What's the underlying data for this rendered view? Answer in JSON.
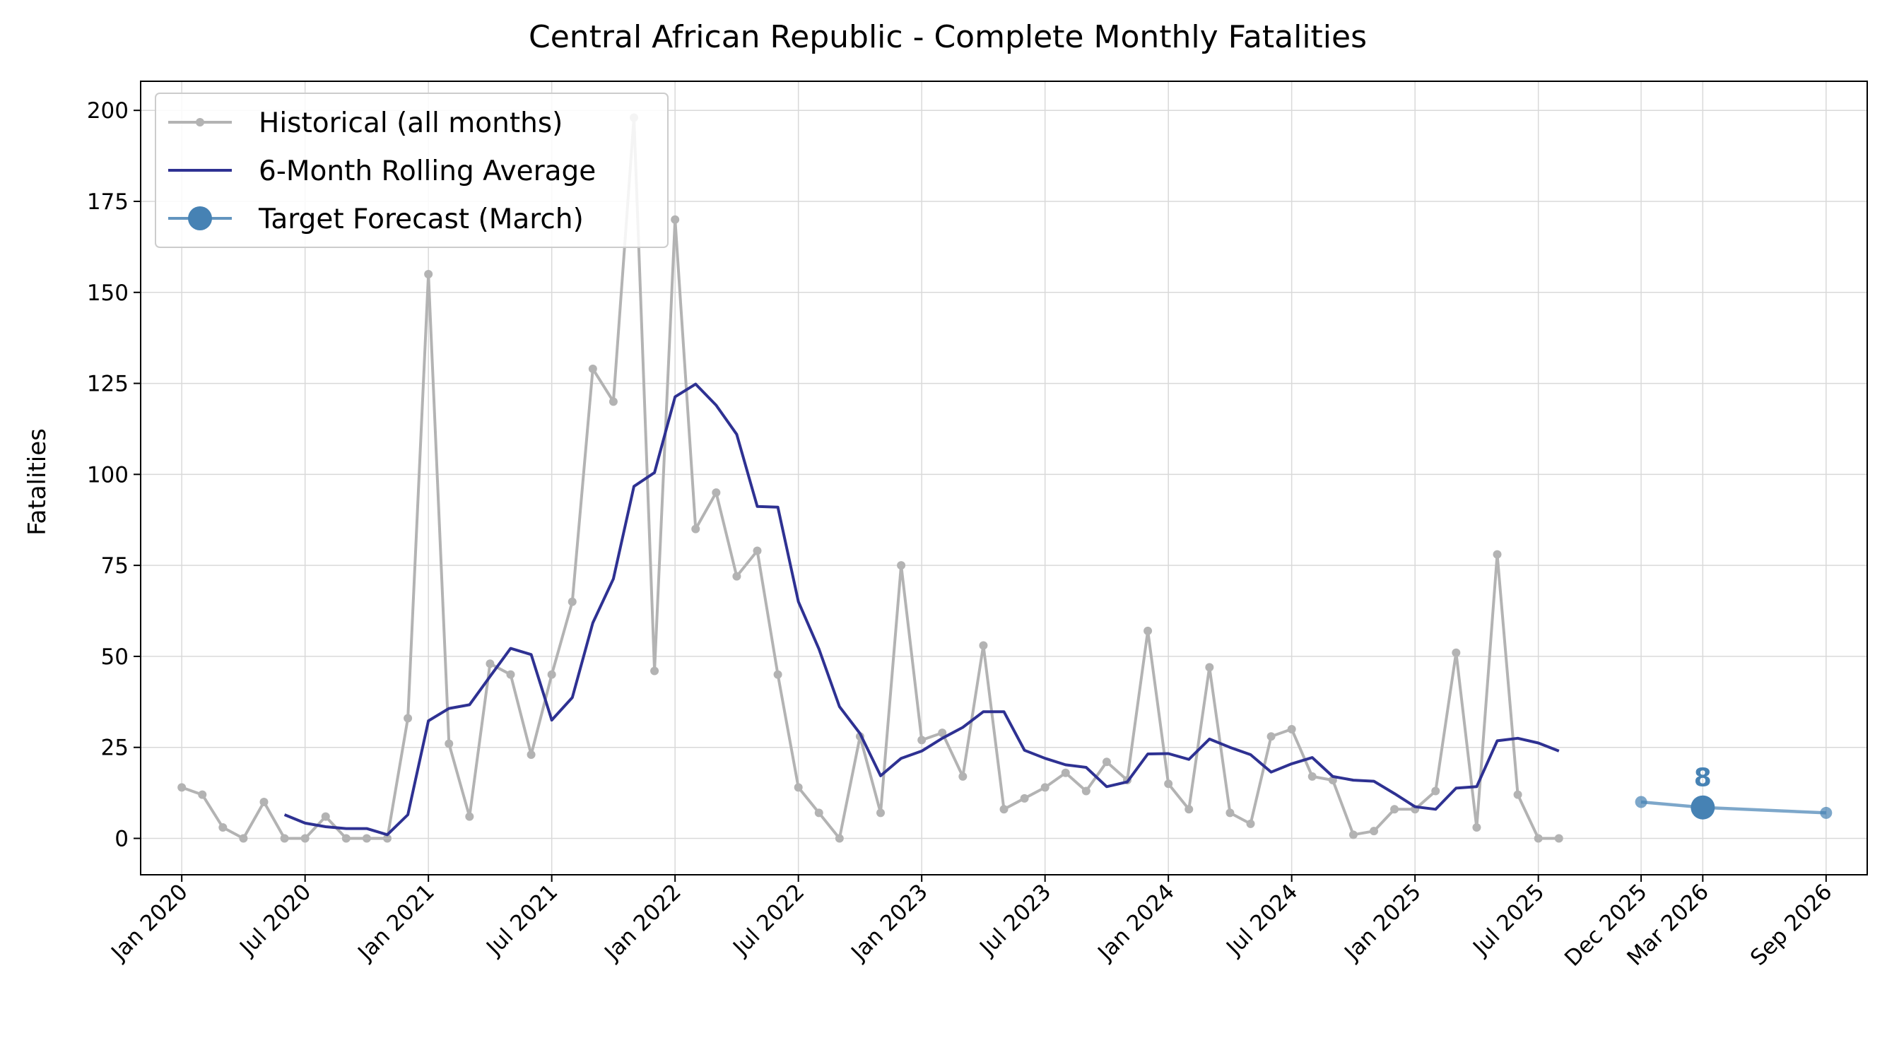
{
  "chart_data": {
    "type": "line",
    "title": "Central African Republic - Complete Monthly Fatalities",
    "xlabel": "",
    "ylabel": "Fatalities",
    "ylim": [
      -10,
      208
    ],
    "xlim": [
      "2019-11",
      "2026-11"
    ],
    "grid": true,
    "legend_placement": "upper-left",
    "x_ticks": [
      {
        "date": "2020-01",
        "label": "Jan 2020"
      },
      {
        "date": "2020-07",
        "label": "Jul 2020"
      },
      {
        "date": "2021-01",
        "label": "Jan 2021"
      },
      {
        "date": "2021-07",
        "label": "Jul 2021"
      },
      {
        "date": "2022-01",
        "label": "Jan 2022"
      },
      {
        "date": "2022-07",
        "label": "Jul 2022"
      },
      {
        "date": "2023-01",
        "label": "Jan 2023"
      },
      {
        "date": "2023-07",
        "label": "Jul 2023"
      },
      {
        "date": "2024-01",
        "label": "Jan 2024"
      },
      {
        "date": "2024-07",
        "label": "Jul 2024"
      },
      {
        "date": "2025-01",
        "label": "Jan 2025"
      },
      {
        "date": "2025-07",
        "label": "Jul 2025"
      },
      {
        "date": "2025-12",
        "label": "Dec 2025"
      },
      {
        "date": "2026-03",
        "label": "Mar 2026"
      },
      {
        "date": "2026-09",
        "label": "Sep 2026"
      }
    ],
    "y_ticks": [
      0,
      25,
      50,
      75,
      100,
      125,
      150,
      175,
      200
    ],
    "series": [
      {
        "name": "Historical (all months)",
        "color": "#b3b3b3",
        "marker": "dot",
        "x": [
          "2020-01",
          "2020-02",
          "2020-03",
          "2020-04",
          "2020-05",
          "2020-06",
          "2020-07",
          "2020-08",
          "2020-09",
          "2020-10",
          "2020-11",
          "2020-12",
          "2021-01",
          "2021-02",
          "2021-03",
          "2021-04",
          "2021-05",
          "2021-06",
          "2021-07",
          "2021-08",
          "2021-09",
          "2021-10",
          "2021-11",
          "2021-12",
          "2022-01",
          "2022-02",
          "2022-03",
          "2022-04",
          "2022-05",
          "2022-06",
          "2022-07",
          "2022-08",
          "2022-09",
          "2022-10",
          "2022-11",
          "2022-12",
          "2023-01",
          "2023-02",
          "2023-03",
          "2023-04",
          "2023-05",
          "2023-06",
          "2023-07",
          "2023-08",
          "2023-09",
          "2023-10",
          "2023-11",
          "2023-12",
          "2024-01",
          "2024-02",
          "2024-03",
          "2024-04",
          "2024-05",
          "2024-06",
          "2024-07",
          "2024-08",
          "2024-09",
          "2024-10",
          "2024-11",
          "2024-12",
          "2025-01",
          "2025-02",
          "2025-03",
          "2025-04",
          "2025-05",
          "2025-06",
          "2025-07",
          "2025-08"
        ],
        "values": [
          14,
          12,
          3,
          0,
          10,
          0,
          0,
          6,
          0,
          0,
          0,
          33,
          155,
          26,
          6,
          48,
          45,
          23,
          45,
          65,
          129,
          120,
          198,
          46,
          170,
          85,
          95,
          72,
          79,
          45,
          14,
          7,
          0,
          28,
          7,
          75,
          27,
          29,
          17,
          53,
          8,
          11,
          14,
          18,
          13,
          21,
          16,
          57,
          15,
          8,
          47,
          7,
          4,
          28,
          30,
          17,
          16,
          1,
          2,
          8,
          8,
          13,
          51,
          3,
          78,
          12,
          0,
          0
        ]
      },
      {
        "name": "6-Month Rolling Average",
        "color": "#2e3192",
        "marker": "none",
        "x": [
          "2020-06",
          "2020-07",
          "2020-08",
          "2020-09",
          "2020-10",
          "2020-11",
          "2020-12",
          "2021-01",
          "2021-02",
          "2021-03",
          "2021-04",
          "2021-05",
          "2021-06",
          "2021-07",
          "2021-08",
          "2021-09",
          "2021-10",
          "2021-11",
          "2021-12",
          "2022-01",
          "2022-02",
          "2022-03",
          "2022-04",
          "2022-05",
          "2022-06",
          "2022-07",
          "2022-08",
          "2022-09",
          "2022-10",
          "2022-11",
          "2022-12",
          "2023-01",
          "2023-02",
          "2023-03",
          "2023-04",
          "2023-05",
          "2023-06",
          "2023-07",
          "2023-08",
          "2023-09",
          "2023-10",
          "2023-11",
          "2023-12",
          "2024-01",
          "2024-02",
          "2024-03",
          "2024-04",
          "2024-05",
          "2024-06",
          "2024-07",
          "2024-08",
          "2024-09",
          "2024-10",
          "2024-11",
          "2024-12",
          "2025-01",
          "2025-02",
          "2025-03",
          "2025-04",
          "2025-05",
          "2025-06",
          "2025-07",
          "2025-08"
        ],
        "values": [
          6.5,
          4.2,
          3.2,
          2.7,
          2.7,
          1.0,
          6.5,
          32.3,
          35.7,
          36.7,
          44.5,
          52.2,
          50.5,
          32.5,
          38.7,
          59.2,
          71.3,
          96.7,
          100.5,
          121.3,
          124.8,
          119.0,
          111.0,
          91.2,
          91.0,
          65.0,
          52.0,
          36.2,
          28.8,
          17.2,
          22.0,
          24.0,
          27.5,
          30.5,
          34.8,
          34.8,
          24.2,
          22.0,
          20.2,
          19.5,
          14.2,
          15.5,
          23.2,
          23.3,
          21.7,
          27.3,
          25.0,
          23.0,
          18.2,
          20.5,
          22.2,
          17.0,
          16.0,
          15.7,
          12.3,
          8.7,
          8.0,
          13.8,
          14.2,
          26.8,
          27.5,
          26.2,
          24.0
        ]
      },
      {
        "name": "Target Forecast (March)",
        "color": "#4682b4",
        "marker": "large-dot",
        "x": [
          "2025-12",
          "2026-03",
          "2026-09"
        ],
        "values": [
          10,
          8.5,
          7
        ],
        "highlight": {
          "x": "2026-03",
          "value": 8.5,
          "label": "8"
        }
      }
    ]
  }
}
